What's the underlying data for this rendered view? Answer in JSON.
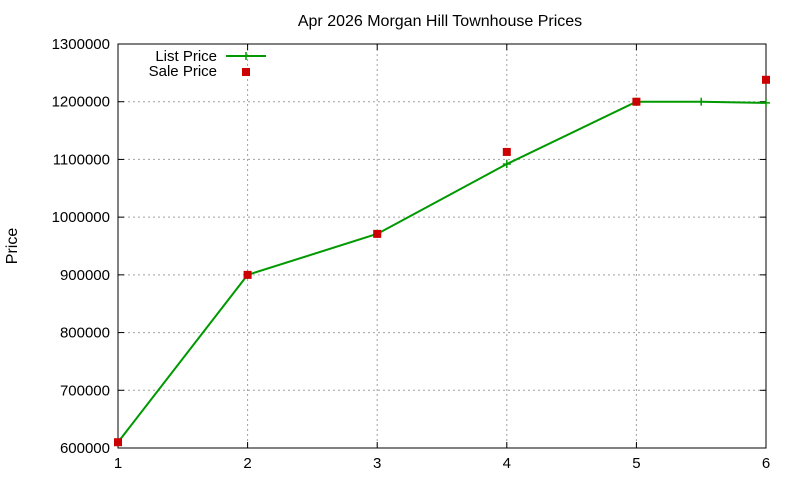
{
  "chart_data": {
    "type": "line",
    "title": "Apr 2026 Morgan Hill Townhouse Prices",
    "xlabel": "",
    "ylabel": "Price",
    "xlim": [
      1,
      6
    ],
    "ylim": [
      600000,
      1300000
    ],
    "x_ticks": [
      "1",
      "2",
      "3",
      "4",
      "5",
      "6"
    ],
    "y_ticks": [
      "600000",
      "700000",
      "800000",
      "900000",
      "1000000",
      "1100000",
      "1200000",
      "1300000"
    ],
    "grid": true,
    "legend_position": "top-left",
    "series": [
      {
        "name": "List Price",
        "style": "line-with-plus-markers",
        "color": "#009900",
        "x": [
          1,
          2,
          3,
          4,
          5,
          5.5,
          6
        ],
        "y": [
          610000,
          900000,
          971000,
          1092000,
          1200000,
          1200000,
          1198000
        ]
      },
      {
        "name": "Sale Price",
        "style": "square-markers",
        "color": "#cc0000",
        "x": [
          1,
          2,
          3,
          4,
          5,
          6
        ],
        "y": [
          610000,
          900000,
          971000,
          1113000,
          1200000,
          1238000
        ]
      }
    ]
  }
}
